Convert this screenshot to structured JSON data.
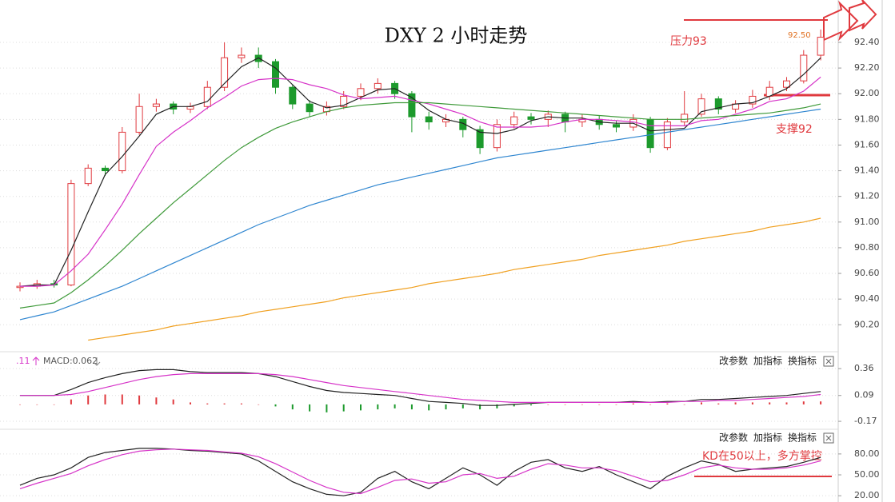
{
  "chart_data": [
    {
      "type": "candlestick",
      "title": "DXY 2 小时走势",
      "resistance_label": "压力93",
      "support_label": "支撑92",
      "high_label": "92.50",
      "ylim": [
        89.99,
        92.73
      ],
      "grid": true,
      "up_color": "#e0393e",
      "down_color": "#1c9a2c",
      "yticks": [
        {
          "value": 90.2,
          "label": "90.20"
        },
        {
          "value": 90.4,
          "label": "90.40"
        },
        {
          "value": 90.6,
          "label": "90.60"
        },
        {
          "value": 90.8,
          "label": "90.80"
        },
        {
          "value": 91.0,
          "label": "91.00"
        },
        {
          "value": 91.2,
          "label": "91.20"
        },
        {
          "value": 91.4,
          "label": "91.40"
        },
        {
          "value": 91.6,
          "label": "91.60"
        },
        {
          "value": 91.8,
          "label": "91.80"
        },
        {
          "value": 92.0,
          "label": "92.00"
        },
        {
          "value": 92.2,
          "label": "92.20"
        },
        {
          "value": 92.4,
          "label": "92.40"
        }
      ],
      "open": [
        90.49,
        90.5,
        90.52,
        90.51,
        91.3,
        91.42,
        91.4,
        91.7,
        91.9,
        91.92,
        91.88,
        91.9,
        92.05,
        92.28,
        92.3,
        92.25,
        92.05,
        91.92,
        91.86,
        91.9,
        91.98,
        92.04,
        92.08,
        92.0,
        91.82,
        91.78,
        91.8,
        91.72,
        91.58,
        91.76,
        91.82,
        91.8,
        91.84,
        91.78,
        91.8,
        91.76,
        91.74,
        91.8,
        91.58,
        91.78,
        91.84,
        91.96,
        91.88,
        91.92,
        91.98,
        92.05,
        92.1,
        92.3
      ],
      "high": [
        90.53,
        90.55,
        90.55,
        91.33,
        91.45,
        91.44,
        91.74,
        92.0,
        91.96,
        91.94,
        91.93,
        92.1,
        92.4,
        92.36,
        92.36,
        92.27,
        92.07,
        91.95,
        91.94,
        92.02,
        92.08,
        92.12,
        92.1,
        92.02,
        91.86,
        91.84,
        91.82,
        91.75,
        91.8,
        91.86,
        91.85,
        91.87,
        91.86,
        91.84,
        91.83,
        91.79,
        91.84,
        91.82,
        91.81,
        92.02,
        92.0,
        91.98,
        91.95,
        92.03,
        92.1,
        92.13,
        92.34,
        92.5
      ],
      "low": [
        90.46,
        90.48,
        90.49,
        90.5,
        91.28,
        91.36,
        91.38,
        91.68,
        91.86,
        91.84,
        91.85,
        91.88,
        92.02,
        92.24,
        92.2,
        92.0,
        91.88,
        91.82,
        91.83,
        91.88,
        91.95,
        92.0,
        91.96,
        91.7,
        91.72,
        91.74,
        91.66,
        91.53,
        91.55,
        91.73,
        91.76,
        91.74,
        91.7,
        91.74,
        91.72,
        91.7,
        91.71,
        91.54,
        91.56,
        91.75,
        91.82,
        91.84,
        91.85,
        91.89,
        91.95,
        92.02,
        92.08,
        92.26
      ],
      "close": [
        90.5,
        90.52,
        90.51,
        91.3,
        91.42,
        91.4,
        91.7,
        91.9,
        91.92,
        91.88,
        91.9,
        92.05,
        92.28,
        92.3,
        92.25,
        92.05,
        91.92,
        91.86,
        91.9,
        91.98,
        92.04,
        92.08,
        92.0,
        91.82,
        91.78,
        91.8,
        91.72,
        91.58,
        91.76,
        91.82,
        91.8,
        91.84,
        91.78,
        91.8,
        91.76,
        91.74,
        91.8,
        91.58,
        91.78,
        91.84,
        91.96,
        91.88,
        91.92,
        91.98,
        92.05,
        92.1,
        92.3,
        92.44
      ],
      "series": [
        {
          "color": "#222222",
          "values": [
            90.5,
            90.51,
            90.51,
            90.78,
            91.08,
            91.37,
            91.51,
            91.67,
            91.84,
            91.9,
            91.9,
            91.94,
            92.08,
            92.21,
            92.28,
            92.2,
            92.07,
            91.94,
            91.89,
            91.91,
            91.97,
            92.03,
            92.04,
            91.97,
            91.87,
            91.8,
            91.77,
            91.7,
            91.69,
            91.72,
            91.79,
            91.82,
            91.81,
            91.81,
            91.78,
            91.77,
            91.77,
            91.71,
            91.72,
            91.73,
            91.86,
            91.89,
            91.92,
            91.93,
            91.98,
            92.04,
            92.15,
            92.28
          ]
        },
        {
          "color": "#d633c8",
          "values": [
            90.5,
            90.5,
            90.51,
            90.62,
            90.75,
            90.94,
            91.14,
            91.37,
            91.59,
            91.7,
            91.79,
            91.89,
            91.97,
            92.06,
            92.11,
            92.12,
            92.11,
            92.07,
            92.04,
            91.99,
            91.96,
            91.97,
            91.98,
            91.95,
            91.92,
            91.88,
            91.84,
            91.78,
            91.74,
            91.74,
            91.74,
            91.75,
            91.78,
            91.8,
            91.8,
            91.79,
            91.78,
            91.75,
            91.75,
            91.75,
            91.79,
            91.8,
            91.84,
            91.88,
            91.94,
            91.96,
            92.02,
            92.13
          ]
        },
        {
          "color": "#3f9a3a",
          "values": [
            90.33,
            90.35,
            90.37,
            90.45,
            90.55,
            90.66,
            90.78,
            90.91,
            91.03,
            91.15,
            91.26,
            91.37,
            91.48,
            91.58,
            91.66,
            91.73,
            91.78,
            91.82,
            91.86,
            91.89,
            91.91,
            91.92,
            91.93,
            91.93,
            91.93,
            91.92,
            91.91,
            91.9,
            91.89,
            91.88,
            91.87,
            91.86,
            91.85,
            91.84,
            91.83,
            91.82,
            91.81,
            91.8,
            91.8,
            91.8,
            91.81,
            91.82,
            91.83,
            91.84,
            91.85,
            91.87,
            91.89,
            91.92
          ]
        },
        {
          "color": "#2f86d0",
          "values": [
            90.24,
            90.27,
            90.3,
            90.35,
            90.4,
            90.45,
            90.5,
            90.56,
            90.62,
            90.68,
            90.74,
            90.8,
            90.86,
            90.92,
            90.98,
            91.03,
            91.08,
            91.13,
            91.17,
            91.21,
            91.25,
            91.29,
            91.32,
            91.35,
            91.38,
            91.41,
            91.44,
            91.47,
            91.5,
            91.52,
            91.54,
            91.56,
            91.58,
            91.6,
            91.62,
            91.64,
            91.66,
            91.68,
            91.7,
            91.72,
            91.74,
            91.76,
            91.78,
            91.8,
            91.82,
            91.84,
            91.86,
            91.88
          ]
        },
        {
          "color": "#f0a020",
          "values": [
            null,
            null,
            null,
            null,
            90.08,
            90.1,
            90.12,
            90.14,
            90.16,
            90.19,
            90.21,
            90.23,
            90.25,
            90.27,
            90.3,
            90.32,
            90.34,
            90.36,
            90.38,
            90.41,
            90.43,
            90.45,
            90.47,
            90.49,
            90.52,
            90.54,
            90.56,
            90.58,
            90.6,
            90.63,
            90.65,
            90.67,
            90.69,
            90.71,
            90.74,
            90.76,
            90.78,
            90.8,
            90.82,
            90.85,
            90.87,
            90.89,
            90.91,
            90.93,
            90.96,
            90.98,
            91.0,
            91.03
          ]
        }
      ]
    },
    {
      "type": "macd",
      "prefix": ".11",
      "label": "MACD:0.062",
      "ylim": [
        -0.25,
        0.49
      ],
      "grid": true,
      "yticks": [
        -0.17,
        0.09,
        0.36
      ],
      "up_color": "#e0393e",
      "down_color": "#1c9a2c",
      "histogram": [
        0,
        0,
        0,
        0.05,
        0.09,
        0.1,
        0.1,
        0.09,
        0.07,
        0.05,
        0.02,
        0.01,
        0.01,
        0.01,
        0,
        -0.02,
        -0.05,
        -0.07,
        -0.08,
        -0.07,
        -0.06,
        -0.05,
        -0.04,
        -0.05,
        -0.06,
        -0.05,
        -0.04,
        -0.05,
        -0.04,
        -0.02,
        -0.01,
        0,
        0,
        0,
        0,
        0,
        0.01,
        0,
        0.01,
        0,
        0.02,
        0.01,
        0.02,
        0.02,
        0.02,
        0.02,
        0.03,
        0.03
      ],
      "series": [
        {
          "color": "#222222",
          "values": [
            0.09,
            0.09,
            0.09,
            0.15,
            0.22,
            0.27,
            0.31,
            0.34,
            0.35,
            0.35,
            0.33,
            0.32,
            0.32,
            0.32,
            0.31,
            0.28,
            0.23,
            0.18,
            0.14,
            0.12,
            0.11,
            0.1,
            0.09,
            0.06,
            0.03,
            0.02,
            0.01,
            -0.01,
            -0.01,
            0.0,
            0.01,
            0.02,
            0.02,
            0.02,
            0.02,
            0.02,
            0.03,
            0.02,
            0.03,
            0.03,
            0.05,
            0.05,
            0.06,
            0.07,
            0.08,
            0.09,
            0.11,
            0.13
          ]
        },
        {
          "color": "#d633c8",
          "values": [
            0.09,
            0.09,
            0.09,
            0.1,
            0.13,
            0.17,
            0.21,
            0.25,
            0.28,
            0.3,
            0.31,
            0.31,
            0.31,
            0.31,
            0.31,
            0.3,
            0.28,
            0.25,
            0.22,
            0.19,
            0.17,
            0.15,
            0.13,
            0.11,
            0.09,
            0.07,
            0.05,
            0.04,
            0.03,
            0.02,
            0.02,
            0.02,
            0.02,
            0.02,
            0.02,
            0.02,
            0.02,
            0.02,
            0.02,
            0.03,
            0.03,
            0.04,
            0.04,
            0.05,
            0.06,
            0.07,
            0.08,
            0.1
          ]
        }
      ]
    },
    {
      "type": "kd",
      "note": "KD在50以上，多方掌控",
      "ylim": [
        11,
        112
      ],
      "grid": true,
      "yticks": [
        {
          "value": 20,
          "label": "20.00"
        },
        {
          "value": 50,
          "label": "50.00"
        },
        {
          "value": 80,
          "label": "80.00"
        }
      ],
      "series": [
        {
          "color": "#222222",
          "values": [
            35,
            45,
            50,
            60,
            75,
            82,
            85,
            88,
            88,
            87,
            85,
            84,
            82,
            80,
            70,
            55,
            40,
            30,
            22,
            20,
            25,
            45,
            55,
            40,
            30,
            45,
            60,
            50,
            35,
            55,
            68,
            72,
            60,
            55,
            62,
            50,
            40,
            30,
            48,
            60,
            70,
            65,
            55,
            58,
            60,
            62,
            68,
            75
          ]
        },
        {
          "color": "#d633c8",
          "values": [
            30,
            38,
            45,
            52,
            63,
            72,
            79,
            84,
            86,
            87,
            86,
            85,
            83,
            81,
            76,
            66,
            54,
            42,
            32,
            25,
            23,
            32,
            42,
            44,
            38,
            40,
            50,
            52,
            45,
            48,
            58,
            66,
            64,
            60,
            60,
            56,
            48,
            40,
            42,
            50,
            60,
            64,
            60,
            58,
            58,
            60,
            64,
            70
          ]
        }
      ]
    }
  ],
  "toolbar": [
    "改参数",
    "加指标",
    "换指标"
  ]
}
